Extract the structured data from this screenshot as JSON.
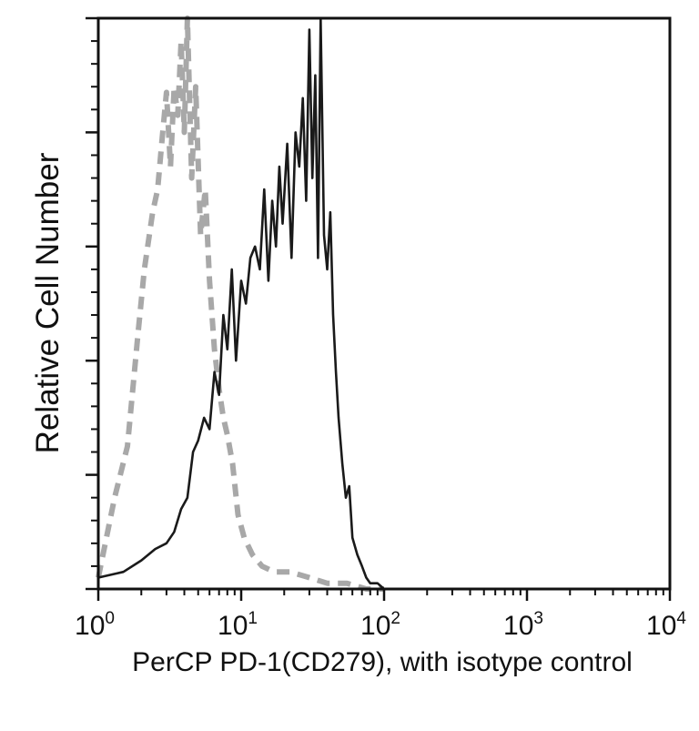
{
  "chart_data": {
    "type": "line",
    "title": "",
    "xlabel": "PerCP PD-1(CD279), with isotype control",
    "ylabel": "Relative Cell Number",
    "x_scale": "log",
    "xlim": [
      1,
      10000
    ],
    "ylim": [
      0,
      1.0
    ],
    "grid": false,
    "legend": "none",
    "x_ticks": [
      {
        "value": 1,
        "base": "10",
        "exp": "0"
      },
      {
        "value": 10,
        "base": "10",
        "exp": "1"
      },
      {
        "value": 100,
        "base": "10",
        "exp": "2"
      },
      {
        "value": 1000,
        "base": "10",
        "exp": "3"
      },
      {
        "value": 10000,
        "base": "10",
        "exp": "4"
      }
    ],
    "y_major_ticks": [
      0,
      0.2,
      0.4,
      0.6,
      0.8,
      1.0
    ],
    "series": [
      {
        "style": "dashed",
        "color": "#a8a8a8",
        "x": [
          1.0,
          1.3,
          1.6,
          1.9,
          2.1,
          2.4,
          2.6,
          2.8,
          3.0,
          3.2,
          3.4,
          3.6,
          3.8,
          4.0,
          4.2,
          4.5,
          4.8,
          5.2,
          5.6,
          6.0,
          6.5,
          7.0,
          7.5,
          8.0,
          8.7,
          9.5,
          10.5,
          12.0,
          14.0,
          17.0,
          22.0,
          30.0,
          40.0,
          55.0,
          75.0,
          100.0
        ],
        "y": [
          0.02,
          0.16,
          0.25,
          0.45,
          0.56,
          0.66,
          0.7,
          0.79,
          0.87,
          0.74,
          0.88,
          0.83,
          0.96,
          0.8,
          1.0,
          0.72,
          0.88,
          0.62,
          0.7,
          0.54,
          0.42,
          0.35,
          0.3,
          0.27,
          0.22,
          0.13,
          0.09,
          0.06,
          0.04,
          0.03,
          0.03,
          0.02,
          0.01,
          0.01,
          0.0,
          0.0
        ]
      },
      {
        "style": "solid",
        "color": "#1a1a1a",
        "x": [
          1.0,
          1.5,
          2.0,
          2.5,
          3.0,
          3.4,
          3.8,
          4.2,
          4.6,
          5.0,
          5.5,
          6.0,
          6.5,
          7.0,
          7.5,
          8.0,
          8.6,
          9.2,
          10.0,
          10.8,
          11.6,
          12.5,
          13.5,
          14.5,
          15.5,
          16.5,
          17.5,
          18.5,
          19.5,
          21.0,
          22.5,
          24.0,
          25.5,
          27.0,
          28.5,
          30.0,
          31.5,
          33.0,
          34.5,
          36.0,
          38.0,
          40.0,
          42.0,
          44.0,
          46.0,
          48.0,
          51.0,
          54.0,
          57.0,
          60.0,
          65.0,
          70.0,
          75.0,
          80.0,
          90.0,
          100.0,
          150.0,
          300.0,
          1000.0,
          3000.0,
          10000.0
        ],
        "y": [
          0.02,
          0.03,
          0.05,
          0.07,
          0.08,
          0.1,
          0.14,
          0.16,
          0.24,
          0.26,
          0.3,
          0.28,
          0.38,
          0.34,
          0.48,
          0.42,
          0.56,
          0.4,
          0.54,
          0.5,
          0.58,
          0.6,
          0.56,
          0.7,
          0.54,
          0.68,
          0.6,
          0.74,
          0.64,
          0.78,
          0.58,
          0.8,
          0.74,
          0.86,
          0.68,
          0.98,
          0.72,
          0.9,
          0.58,
          1.0,
          0.62,
          0.56,
          0.66,
          0.48,
          0.38,
          0.3,
          0.22,
          0.16,
          0.18,
          0.09,
          0.06,
          0.04,
          0.02,
          0.01,
          0.01,
          0.0,
          0.0,
          0.0,
          0.0,
          0.0,
          0.0
        ]
      }
    ]
  }
}
